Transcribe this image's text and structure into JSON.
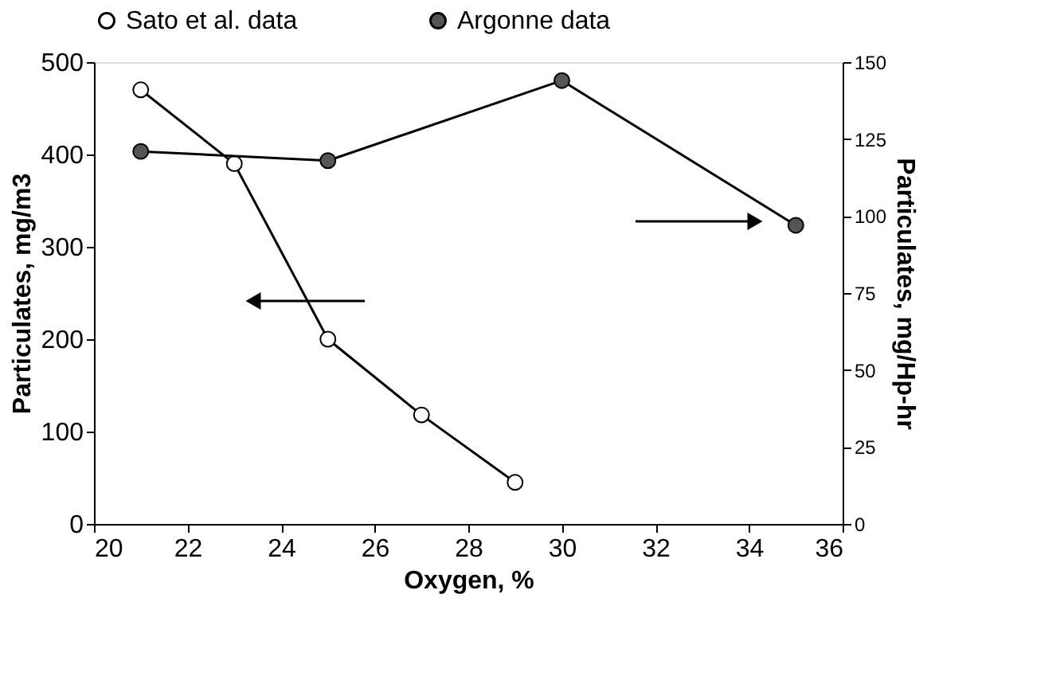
{
  "chart_data": {
    "type": "line",
    "xlabel": "Oxygen, %",
    "ylabel": "Particulates,      mg/m3",
    "y2label": "Particulates,      mg/Hp-hr",
    "xlim": [
      20,
      36
    ],
    "xticks": [
      20,
      22,
      24,
      26,
      28,
      30,
      32,
      34,
      36
    ],
    "ylim": [
      0,
      500
    ],
    "yticks": [
      0,
      100,
      200,
      300,
      400,
      500
    ],
    "y2lim": [
      0,
      150
    ],
    "y2ticks": [
      0,
      25,
      50,
      75,
      100,
      125,
      150
    ],
    "marker": "circle",
    "legend": "top",
    "grid": false,
    "series": [
      {
        "name": "Sato et al. data",
        "color": "#ffffff",
        "x": [
          21,
          23,
          25,
          27,
          29
        ],
        "values": [
          470,
          390,
          200,
          118,
          45
        ]
      },
      {
        "name": "Argonne data",
        "color": "#555555",
        "axis": "y2",
        "x": [
          21,
          25,
          30,
          35
        ],
        "values": [
          121,
          118,
          144,
          97
        ]
      }
    ]
  }
}
